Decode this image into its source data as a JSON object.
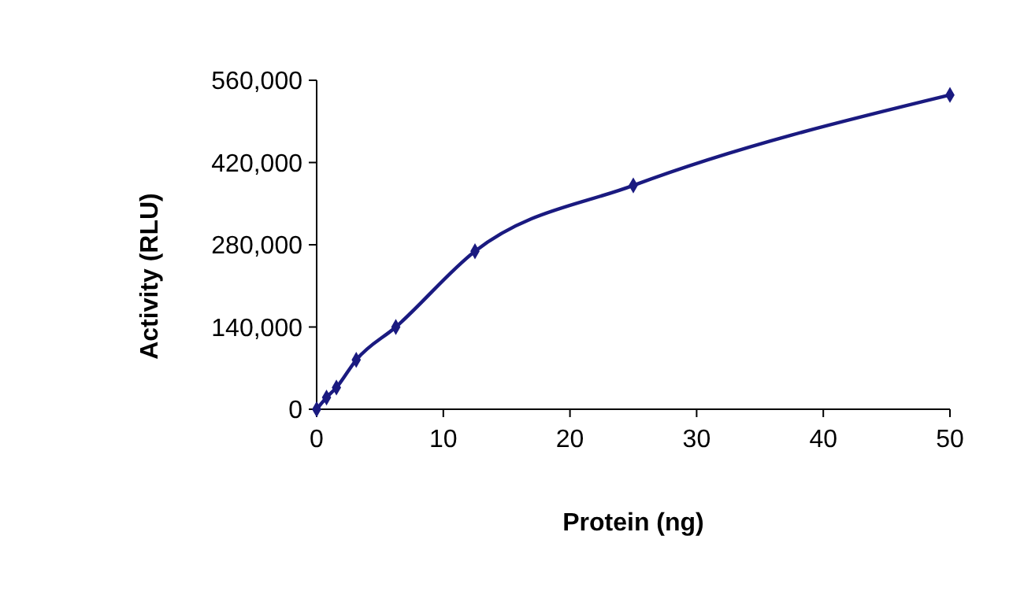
{
  "chart_data": {
    "type": "line",
    "xlabel": "Protein (ng)",
    "ylabel": "Activity (RLU)",
    "x": [
      0,
      0.78,
      1.56,
      3.125,
      6.25,
      12.5,
      25,
      50
    ],
    "series": [
      {
        "color": "#1a1a80",
        "values": [
          0,
          20000,
          37000,
          84000,
          140000,
          269000,
          381000,
          535000
        ]
      }
    ],
    "xlim": [
      0,
      50
    ],
    "xticks": [
      0,
      10,
      20,
      30,
      40,
      50
    ],
    "ylim": [
      0,
      560000
    ],
    "yticks": [
      {
        "value": 0,
        "label": "0"
      },
      {
        "value": 140000,
        "label": "140,000"
      },
      {
        "value": 280000,
        "label": "280,000"
      },
      {
        "value": 420000,
        "label": "420,000"
      },
      {
        "value": 560000,
        "label": "560,000"
      }
    ],
    "grid": false,
    "marker": "diamond",
    "line_style": "solid"
  }
}
